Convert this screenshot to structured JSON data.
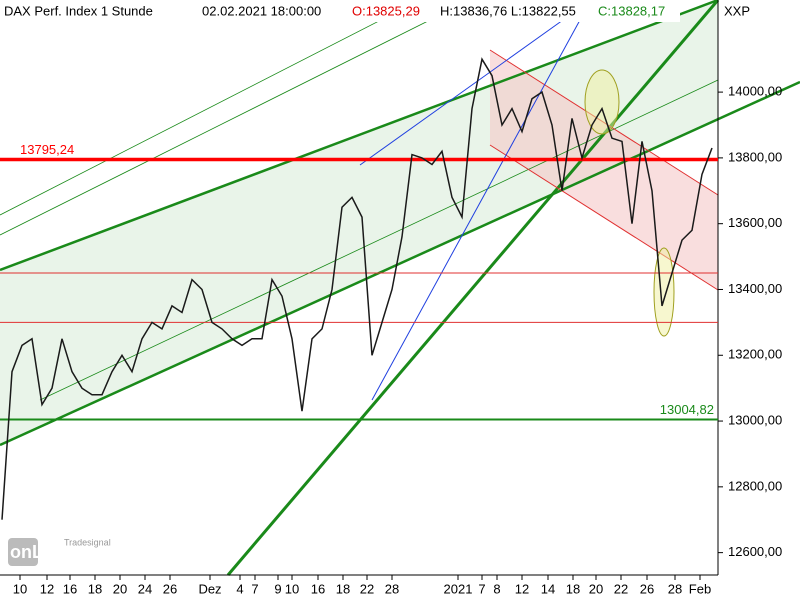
{
  "chart_data": {
    "type": "line",
    "title": "DAX Perf. Index 1 Stunde",
    "datetime": "02.02.2021 18:00:00",
    "open": "O:13825,29",
    "high_low": "H:13836,76 L:13822,55",
    "close": "C:13828,17",
    "symbol": "XXP",
    "logo": "onLine",
    "logo_sub": "Tradesignal",
    "x": [
      0,
      1,
      2,
      3,
      4,
      5,
      6,
      7,
      8,
      9,
      10,
      11,
      12,
      13,
      14,
      15,
      16,
      17,
      18,
      19,
      20,
      21,
      22,
      23,
      24,
      25,
      26,
      27,
      28,
      29,
      30,
      31,
      32,
      33,
      34,
      35,
      36,
      37,
      38,
      39,
      40,
      41,
      42,
      43,
      44,
      45,
      46,
      47,
      48,
      49,
      50,
      51,
      52,
      53,
      54,
      55,
      56,
      57,
      58,
      59,
      60,
      61,
      62,
      63,
      64,
      65,
      66,
      67,
      68,
      69,
      70,
      71
    ],
    "series": [
      {
        "name": "DAX",
        "color": "#1a1a1a",
        "values": [
          12700,
          13150,
          13230,
          13250,
          13050,
          13100,
          13250,
          13150,
          13100,
          13080,
          13080,
          13150,
          13200,
          13150,
          13250,
          13300,
          13280,
          13350,
          13330,
          13430,
          13400,
          13300,
          13280,
          13250,
          13230,
          13250,
          13250,
          13430,
          13380,
          13250,
          13030,
          13250,
          13280,
          13400,
          13650,
          13680,
          13620,
          13200,
          13300,
          13400,
          13560,
          13810,
          13800,
          13780,
          13820,
          13680,
          13620,
          13950,
          14100,
          14050,
          13900,
          13950,
          13880,
          13980,
          14000,
          13900,
          13700,
          13920,
          13800,
          13900,
          13950,
          13860,
          13850,
          13600,
          13850,
          13700,
          13350,
          13450,
          13550,
          13580,
          13750,
          13830
        ]
      }
    ],
    "xlim": [
      -0.2,
      71.4
    ],
    "xticks": [
      {
        "value": 1.8,
        "label": "10"
      },
      {
        "value": 4.5,
        "label": "12"
      },
      {
        "value": 6.8,
        "label": "16"
      },
      {
        "value": 9.3,
        "label": "18"
      },
      {
        "value": 11.8,
        "label": "20"
      },
      {
        "value": 14.3,
        "label": "24"
      },
      {
        "value": 16.8,
        "label": "26"
      },
      {
        "value": 20.8,
        "label": "Dez"
      },
      {
        "value": 23.8,
        "label": "4"
      },
      {
        "value": 25.3,
        "label": "7"
      },
      {
        "value": 27.6,
        "label": "9"
      },
      {
        "value": 29.0,
        "label": "10"
      },
      {
        "value": 31.6,
        "label": "16"
      },
      {
        "value": 34.1,
        "label": "18"
      },
      {
        "value": 36.5,
        "label": "22"
      },
      {
        "value": 39.0,
        "label": "28"
      },
      {
        "value": 45.6,
        "label": "2021"
      },
      {
        "value": 48.0,
        "label": "7"
      },
      {
        "value": 49.5,
        "label": "8"
      },
      {
        "value": 52.0,
        "label": "12"
      },
      {
        "value": 54.6,
        "label": "14"
      },
      {
        "value": 57.1,
        "label": "18"
      },
      {
        "value": 59.4,
        "label": "20"
      },
      {
        "value": 61.9,
        "label": "22"
      },
      {
        "value": 64.5,
        "label": "26"
      },
      {
        "value": 67.3,
        "label": "28"
      },
      {
        "value": 69.8,
        "label": "Feb"
      }
    ],
    "ylim": [
      12532,
      14280
    ],
    "yticks": [
      {
        "value": 12600,
        "label": "12600,00"
      },
      {
        "value": 12800,
        "label": "12800,00"
      },
      {
        "value": 13000,
        "label": "13000,00"
      },
      {
        "value": 13200,
        "label": "13200,00"
      },
      {
        "value": 13400,
        "label": "13400,00"
      },
      {
        "value": 13600,
        "label": "13600,00"
      },
      {
        "value": 13800,
        "label": "13800,00"
      },
      {
        "value": 14000,
        "label": "14000,00"
      }
    ],
    "levels": [
      {
        "value": 13795.24,
        "label": "13795,24",
        "color": "#ff0000"
      },
      {
        "value": 13004.82,
        "label": "13004,82",
        "color": "#1a8a1a"
      },
      {
        "value": 13450,
        "color": "#e03030"
      },
      {
        "value": 13300,
        "color": "#e03030"
      }
    ]
  }
}
